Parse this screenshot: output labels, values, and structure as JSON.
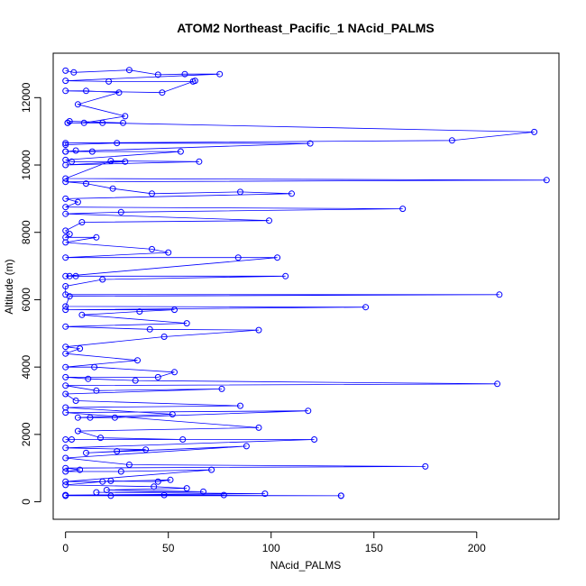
{
  "chart_data": {
    "type": "scatter",
    "title": "ATOM2 Northeast_Pacific_1 NAcid_PALMS",
    "xlabel": "NAcid_PALMS",
    "ylabel": "Altitude (m)",
    "xlim": [
      -6,
      240
    ],
    "ylim": [
      -520,
      13320
    ],
    "x_ticks": [
      0,
      50,
      100,
      150,
      200
    ],
    "y_ticks": [
      0,
      2000,
      4000,
      6000,
      8000,
      10000,
      12000
    ],
    "grid": false,
    "legend": "none",
    "colors": {
      "series": "#0000ff",
      "axes": "#000000",
      "background": "#ffffff"
    },
    "series": [
      {
        "x": [
          0,
          4,
          31,
          45,
          58,
          75,
          0,
          21,
          62,
          63,
          47,
          0,
          10,
          26,
          6,
          29,
          9,
          28,
          2,
          1,
          1,
          18,
          228,
          188,
          0,
          0,
          25,
          119,
          0,
          5,
          0,
          13,
          56,
          0,
          3,
          29,
          0,
          65,
          22,
          0,
          234,
          0,
          10,
          23,
          42,
          85,
          110,
          0,
          6,
          0,
          164,
          27,
          0,
          99,
          8,
          0,
          2,
          0,
          15,
          0,
          42,
          50,
          0,
          84,
          103,
          0,
          5,
          2,
          107,
          18,
          0,
          0,
          211,
          2,
          0,
          146,
          0,
          53,
          36,
          8,
          59,
          0,
          41,
          94,
          48,
          0,
          7,
          0,
          35,
          0,
          14,
          53,
          45,
          0,
          11,
          34,
          210,
          0,
          15,
          76,
          0,
          5,
          85,
          0,
          52,
          6,
          12,
          24,
          118,
          0,
          94,
          6,
          17,
          57,
          0,
          3,
          121,
          0,
          39,
          25,
          10,
          88,
          0,
          31,
          175,
          0,
          7,
          0,
          27,
          71,
          0,
          18,
          51,
          45,
          22,
          0,
          43,
          59,
          20,
          67,
          15,
          97,
          0,
          134,
          0,
          77,
          48,
          0,
          134,
          22
        ],
        "y": [
          12800,
          12750,
          12820,
          12680,
          12700,
          12700,
          12500,
          12480,
          12480,
          12500,
          12150,
          12200,
          12200,
          12150,
          11800,
          11450,
          11250,
          11250,
          11300,
          11250,
          11250,
          11250,
          10980,
          10730,
          10650,
          10600,
          10650,
          10640,
          10400,
          10430,
          10400,
          10400,
          10400,
          10150,
          10100,
          10100,
          10000,
          10100,
          10120,
          9600,
          9550,
          9500,
          9450,
          9300,
          9150,
          9200,
          9150,
          9000,
          8900,
          8750,
          8700,
          8600,
          8550,
          8350,
          8300,
          8050,
          7950,
          7850,
          7850,
          7700,
          7500,
          7400,
          7250,
          7250,
          7250,
          6700,
          6700,
          6700,
          6700,
          6600,
          6400,
          6150,
          6150,
          6100,
          5800,
          5780,
          5700,
          5700,
          5650,
          5550,
          5300,
          5200,
          5120,
          5100,
          4900,
          4600,
          4550,
          4400,
          4200,
          4000,
          4000,
          3850,
          3700,
          3700,
          3650,
          3600,
          3500,
          3450,
          3300,
          3350,
          3200,
          3000,
          2850,
          2800,
          2600,
          2500,
          2500,
          2500,
          2700,
          2650,
          2200,
          2100,
          1900,
          1850,
          1850,
          1850,
          1850,
          1600,
          1550,
          1500,
          1450,
          1650,
          1300,
          1100,
          1050,
          1000,
          950,
          900,
          900,
          950,
          600,
          600,
          650,
          600,
          620,
          500,
          450,
          400,
          350,
          300,
          280,
          240,
          200,
          180,
          180,
          200,
          200,
          180,
          180,
          180
        ]
      }
    ]
  }
}
